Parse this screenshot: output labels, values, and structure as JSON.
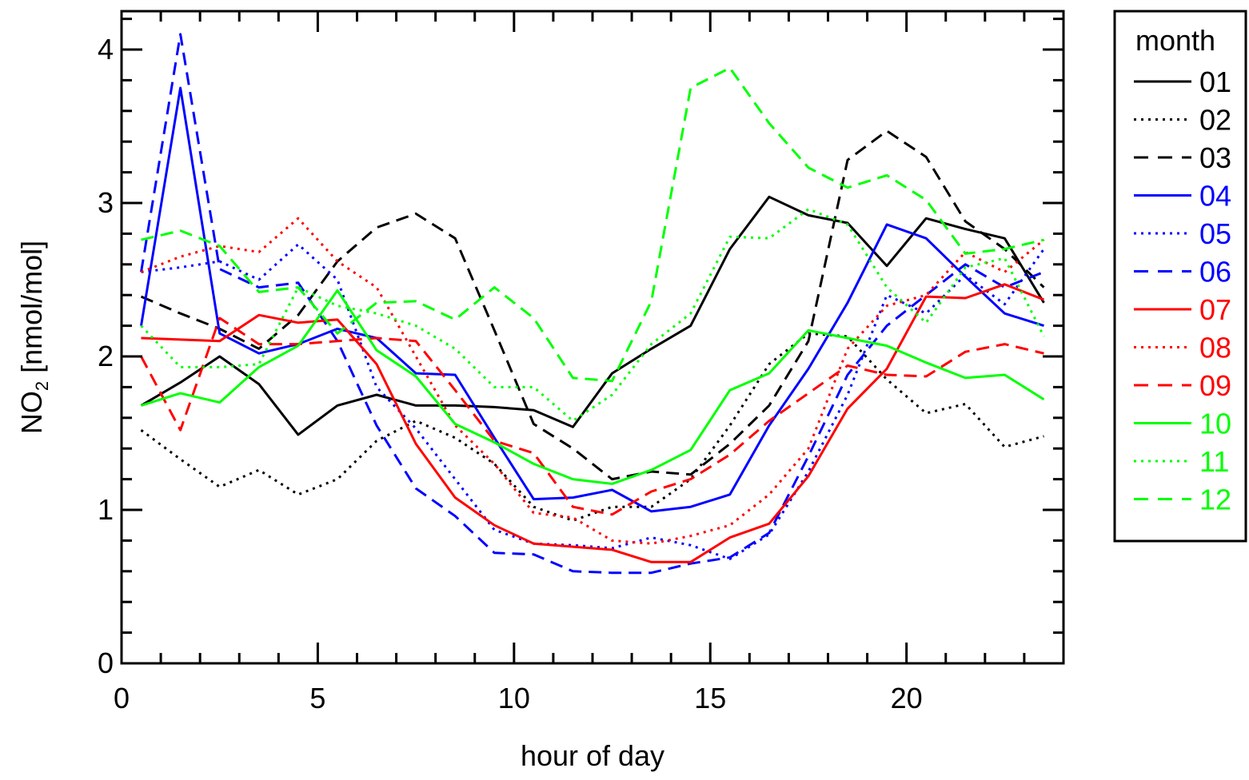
{
  "chart_data": {
    "type": "line",
    "xlabel": "hour of day",
    "ylabel": {
      "main": "NO",
      "sub": "2",
      "rest": " [nmol/mol]"
    },
    "xlim": [
      0,
      24
    ],
    "ylim": [
      0,
      4.25
    ],
    "xticks": [
      0,
      5,
      10,
      15,
      20
    ],
    "yticks": [
      0,
      1,
      2,
      3,
      4
    ],
    "x": [
      0.5,
      1.5,
      2.5,
      3.5,
      4.5,
      5.5,
      6.5,
      7.5,
      8.5,
      9.5,
      10.5,
      11.5,
      12.5,
      13.5,
      14.5,
      15.5,
      16.5,
      17.5,
      18.5,
      19.5,
      20.5,
      21.5,
      22.5,
      23.5
    ],
    "legend": {
      "title": "month",
      "position": "right-outside"
    },
    "series": [
      {
        "name": "01",
        "color": "#000000",
        "style": "solid",
        "values": [
          1.68,
          1.83,
          2.0,
          1.82,
          1.49,
          1.68,
          1.75,
          1.68,
          1.68,
          1.67,
          1.65,
          1.54,
          1.89,
          2.05,
          2.2,
          2.7,
          3.04,
          2.92,
          2.87,
          2.59,
          2.9,
          2.83,
          2.77,
          2.35
        ]
      },
      {
        "name": "02",
        "color": "#000000",
        "style": "dotted",
        "values": [
          1.52,
          1.33,
          1.15,
          1.26,
          1.1,
          1.2,
          1.45,
          1.58,
          1.47,
          1.3,
          1.02,
          0.93,
          1.02,
          1.02,
          1.2,
          1.55,
          1.95,
          2.15,
          2.13,
          1.85,
          1.63,
          1.69,
          1.41,
          1.48
        ]
      },
      {
        "name": "03",
        "color": "#000000",
        "style": "dashed",
        "values": [
          2.39,
          2.28,
          2.18,
          2.05,
          2.27,
          2.62,
          2.84,
          2.93,
          2.77,
          2.17,
          1.56,
          1.4,
          1.2,
          1.25,
          1.23,
          1.43,
          1.68,
          2.1,
          3.28,
          3.47,
          3.3,
          2.88,
          2.7,
          2.45
        ]
      },
      {
        "name": "04",
        "color": "#0000ff",
        "style": "solid",
        "values": [
          2.2,
          3.75,
          2.15,
          2.02,
          2.08,
          2.18,
          2.12,
          1.89,
          1.88,
          1.47,
          1.07,
          1.08,
          1.13,
          0.99,
          1.02,
          1.1,
          1.55,
          1.92,
          2.35,
          2.86,
          2.77,
          2.52,
          2.28,
          2.2
        ]
      },
      {
        "name": "05",
        "color": "#0000ff",
        "style": "dotted",
        "values": [
          2.55,
          2.58,
          2.62,
          2.5,
          2.73,
          2.5,
          1.8,
          1.53,
          1.2,
          0.87,
          0.78,
          0.77,
          0.75,
          0.82,
          0.77,
          0.68,
          0.84,
          1.25,
          1.75,
          2.4,
          2.28,
          2.53,
          2.34,
          2.7
        ]
      },
      {
        "name": "06",
        "color": "#0000ff",
        "style": "dashed",
        "values": [
          2.55,
          4.1,
          2.57,
          2.45,
          2.48,
          2.1,
          1.55,
          1.14,
          0.96,
          0.72,
          0.71,
          0.6,
          0.59,
          0.59,
          0.65,
          0.69,
          0.85,
          1.35,
          1.88,
          2.2,
          2.4,
          2.6,
          2.45,
          2.55
        ]
      },
      {
        "name": "07",
        "color": "#ff0000",
        "style": "solid",
        "values": [
          2.12,
          2.11,
          2.1,
          2.27,
          2.22,
          2.24,
          1.95,
          1.43,
          1.08,
          0.9,
          0.78,
          0.76,
          0.74,
          0.66,
          0.66,
          0.82,
          0.91,
          1.22,
          1.66,
          1.92,
          2.39,
          2.38,
          2.47,
          2.37
        ]
      },
      {
        "name": "08",
        "color": "#ff0000",
        "style": "dotted",
        "values": [
          2.55,
          2.65,
          2.72,
          2.68,
          2.9,
          2.62,
          2.45,
          2.0,
          1.55,
          1.3,
          0.98,
          0.95,
          0.8,
          0.78,
          0.83,
          0.9,
          1.1,
          1.4,
          2.05,
          2.33,
          2.4,
          2.68,
          2.55,
          2.76
        ]
      },
      {
        "name": "09",
        "color": "#ff0000",
        "style": "dashed",
        "values": [
          2.0,
          1.52,
          2.25,
          2.08,
          2.08,
          2.1,
          2.12,
          2.1,
          1.78,
          1.45,
          1.37,
          1.02,
          0.97,
          1.12,
          1.2,
          1.36,
          1.58,
          1.76,
          1.94,
          1.88,
          1.87,
          2.03,
          2.08,
          2.02
        ]
      },
      {
        "name": "10",
        "color": "#00ff00",
        "style": "solid",
        "values": [
          1.68,
          1.76,
          1.7,
          1.93,
          2.07,
          2.43,
          2.04,
          1.87,
          1.56,
          1.44,
          1.3,
          1.2,
          1.17,
          1.26,
          1.39,
          1.78,
          1.89,
          2.17,
          2.12,
          2.07,
          1.96,
          1.86,
          1.88,
          1.72
        ]
      },
      {
        "name": "11",
        "color": "#00ff00",
        "style": "dotted",
        "values": [
          2.2,
          1.93,
          1.93,
          1.95,
          2.45,
          2.33,
          2.28,
          2.2,
          2.05,
          1.8,
          1.8,
          1.58,
          1.75,
          2.08,
          2.28,
          2.78,
          2.77,
          2.96,
          2.86,
          2.45,
          2.22,
          2.58,
          2.64,
          2.13
        ]
      },
      {
        "name": "12",
        "color": "#00ff00",
        "style": "dashed",
        "values": [
          2.76,
          2.82,
          2.72,
          2.42,
          2.45,
          2.15,
          2.35,
          2.36,
          2.24,
          2.45,
          2.25,
          1.86,
          1.84,
          2.36,
          3.75,
          3.88,
          3.52,
          3.23,
          3.1,
          3.18,
          3.02,
          2.67,
          2.7,
          2.76
        ]
      }
    ]
  }
}
